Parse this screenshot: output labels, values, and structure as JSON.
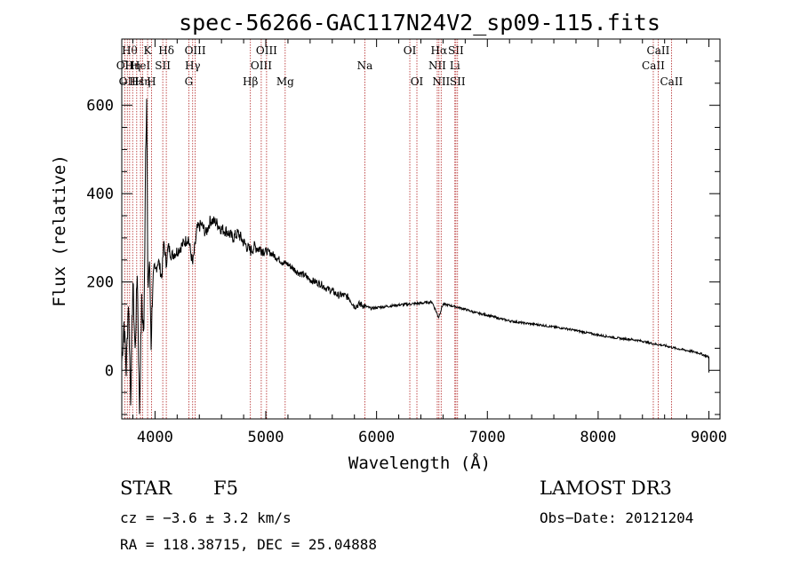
{
  "chart_data": {
    "type": "line",
    "title": "spec-56266-GAC117N24V2_sp09-115.fits",
    "xlabel": "Wavelength (Å)",
    "ylabel": "Flux (relative)",
    "xlim": [
      3700,
      9100
    ],
    "ylim": [
      -110,
      750
    ],
    "xticks": [
      4000,
      5000,
      6000,
      7000,
      8000,
      9000
    ],
    "yticks": [
      0,
      200,
      400,
      600
    ],
    "grid": false,
    "series": [
      {
        "name": "spectrum",
        "x": [
          3700,
          3720,
          3740,
          3760,
          3780,
          3800,
          3820,
          3840,
          3860,
          3880,
          3900,
          3915,
          3925,
          3935,
          3950,
          3965,
          3980,
          4000,
          4030,
          4060,
          4080,
          4100,
          4120,
          4150,
          4200,
          4250,
          4300,
          4340,
          4380,
          4420,
          4460,
          4500,
          4550,
          4600,
          4650,
          4700,
          4750,
          4800,
          4860,
          4900,
          4950,
          5000,
          5050,
          5100,
          5150,
          5200,
          5250,
          5300,
          5350,
          5400,
          5450,
          5500,
          5550,
          5600,
          5650,
          5700,
          5750,
          5800,
          5850,
          5900,
          5950,
          6000,
          6100,
          6200,
          6300,
          6400,
          6500,
          6560,
          6600,
          6700,
          6800,
          6900,
          7000,
          7100,
          7200,
          7300,
          7400,
          7500,
          7600,
          7700,
          7800,
          7900,
          8000,
          8100,
          8200,
          8300,
          8400,
          8500,
          8600,
          8700,
          8800,
          8900,
          9000
        ],
        "values": [
          20,
          110,
          0,
          160,
          -60,
          200,
          40,
          230,
          -90,
          150,
          80,
          500,
          620,
          180,
          250,
          60,
          200,
          220,
          250,
          210,
          290,
          240,
          280,
          260,
          270,
          285,
          300,
          240,
          320,
          330,
          310,
          340,
          335,
          320,
          315,
          300,
          310,
          290,
          270,
          280,
          275,
          270,
          265,
          255,
          245,
          240,
          230,
          220,
          215,
          205,
          200,
          195,
          185,
          180,
          170,
          170,
          165,
          145,
          150,
          145,
          140,
          142,
          145,
          148,
          150,
          152,
          155,
          120,
          150,
          145,
          138,
          130,
          125,
          118,
          112,
          108,
          105,
          102,
          98,
          95,
          90,
          85,
          80,
          76,
          72,
          70,
          66,
          60,
          56,
          50,
          45,
          40,
          30
        ]
      }
    ],
    "lines": [
      {
        "wl": 3727,
        "row": 1,
        "label": "OII"
      },
      {
        "wl": 3750,
        "row": 2,
        "label": "OII"
      },
      {
        "wl": 3771,
        "row": 0,
        "label": "Hθ"
      },
      {
        "wl": 3798,
        "row": 1,
        "label": "Hη"
      },
      {
        "wl": 3835,
        "row": 2,
        "label": "Hε"
      },
      {
        "wl": 3869,
        "row": 1,
        "label": "HeI"
      },
      {
        "wl": 3889,
        "row": 2,
        "label": "Hη"
      },
      {
        "wl": 3933,
        "row": 0,
        "label": "K"
      },
      {
        "wl": 3968,
        "row": 2,
        "label": "H"
      },
      {
        "wl": 4070,
        "row": 1,
        "label": "SII"
      },
      {
        "wl": 4102,
        "row": 0,
        "label": "Hδ"
      },
      {
        "wl": 4305,
        "row": 2,
        "label": "G"
      },
      {
        "wl": 4340,
        "row": 1,
        "label": "Hγ"
      },
      {
        "wl": 4363,
        "row": 0,
        "label": "OIII"
      },
      {
        "wl": 4861,
        "row": 2,
        "label": "Hβ"
      },
      {
        "wl": 4959,
        "row": 1,
        "label": "OIII"
      },
      {
        "wl": 5007,
        "row": 0,
        "label": "OIII"
      },
      {
        "wl": 5175,
        "row": 2,
        "label": "Mg"
      },
      {
        "wl": 5894,
        "row": 1,
        "label": "Na"
      },
      {
        "wl": 6300,
        "row": 0,
        "label": "OI"
      },
      {
        "wl": 6364,
        "row": 2,
        "label": "OI"
      },
      {
        "wl": 6548,
        "row": 1,
        "label": "NII"
      },
      {
        "wl": 6563,
        "row": 0,
        "label": "Hα"
      },
      {
        "wl": 6583,
        "row": 2,
        "label": "NII"
      },
      {
        "wl": 6707,
        "row": 1,
        "label": "Li"
      },
      {
        "wl": 6716,
        "row": 0,
        "label": "SII"
      },
      {
        "wl": 6731,
        "row": 2,
        "label": "SII"
      },
      {
        "wl": 8498,
        "row": 1,
        "label": "CaII"
      },
      {
        "wl": 8542,
        "row": 0,
        "label": "CaII"
      },
      {
        "wl": 8662,
        "row": 2,
        "label": "CaII"
      }
    ]
  },
  "info": {
    "class": "STAR",
    "subclass": "F5",
    "survey": "LAMOST DR3",
    "cz": "cz = −3.6 ± 3.2 km/s",
    "obs_date": "Obs−Date: 20121204",
    "coords": "RA = 118.38715, DEC =  25.04888"
  },
  "colors": {
    "spectrum": "#000000",
    "line_marker": "#b22222",
    "frame": "#000000"
  }
}
